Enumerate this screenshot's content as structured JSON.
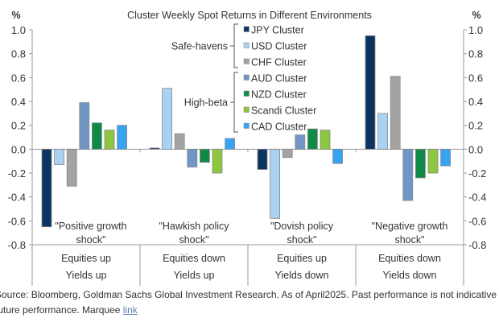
{
  "chart_data": {
    "type": "bar",
    "title": "Cluster Weekly Spot Returns in Different Environments",
    "ylabel_left": "%",
    "ylabel_right": "%",
    "ylim": [
      -0.8,
      1.0
    ],
    "yticks": [
      "1.0",
      "0.8",
      "0.6",
      "0.4",
      "0.2",
      "0.0",
      "-0.2",
      "-0.4",
      "-0.6",
      "-0.8"
    ],
    "grid": false,
    "legend_placement": "top-center",
    "categories": [
      {
        "annotation": [
          "\"Positive growth",
          "shock\""
        ],
        "equities": "Equities up",
        "yields": "Yields up"
      },
      {
        "annotation": [
          "\"Hawkish policy",
          "shock\""
        ],
        "equities": "Equities down",
        "yields": "Yields up"
      },
      {
        "annotation": [
          "\"Dovish policy",
          "shock\""
        ],
        "equities": "Equities up",
        "yields": "Yields down"
      },
      {
        "annotation": [
          "\"Negative growth",
          "shock\""
        ],
        "equities": "Equities down",
        "yields": "Yields down"
      }
    ],
    "legend_groups": [
      {
        "label": "Safe-havens",
        "series": [
          0,
          1,
          2
        ]
      },
      {
        "label": "High-beta",
        "series": [
          3,
          4,
          5,
          6
        ]
      }
    ],
    "series": [
      {
        "name": "JPY Cluster",
        "color": "#0b3460",
        "values": [
          -0.65,
          0.01,
          -0.17,
          0.95
        ]
      },
      {
        "name": "USD Cluster",
        "color": "#a9d1f1",
        "values": [
          -0.13,
          0.51,
          -0.58,
          0.3
        ]
      },
      {
        "name": "CHF Cluster",
        "color": "#a3a3a3",
        "values": [
          -0.31,
          0.13,
          -0.07,
          0.61
        ]
      },
      {
        "name": "AUD Cluster",
        "color": "#6f96c5",
        "values": [
          0.39,
          -0.15,
          0.12,
          -0.43
        ]
      },
      {
        "name": "NZD Cluster",
        "color": "#0e8a46",
        "values": [
          0.22,
          -0.11,
          0.17,
          -0.24
        ]
      },
      {
        "name": "Scandi Cluster",
        "color": "#8dc63f",
        "values": [
          0.16,
          -0.2,
          0.16,
          -0.2
        ]
      },
      {
        "name": "CAD Cluster",
        "color": "#36a4f2",
        "values": [
          0.2,
          0.09,
          -0.12,
          -0.14
        ]
      }
    ]
  },
  "source": {
    "line1": "Source: Bloomberg, Goldman Sachs Global Investment Research. As of April2025. Past performance is not indicative of",
    "line2": "future performance. Marquee ",
    "link": "link"
  }
}
